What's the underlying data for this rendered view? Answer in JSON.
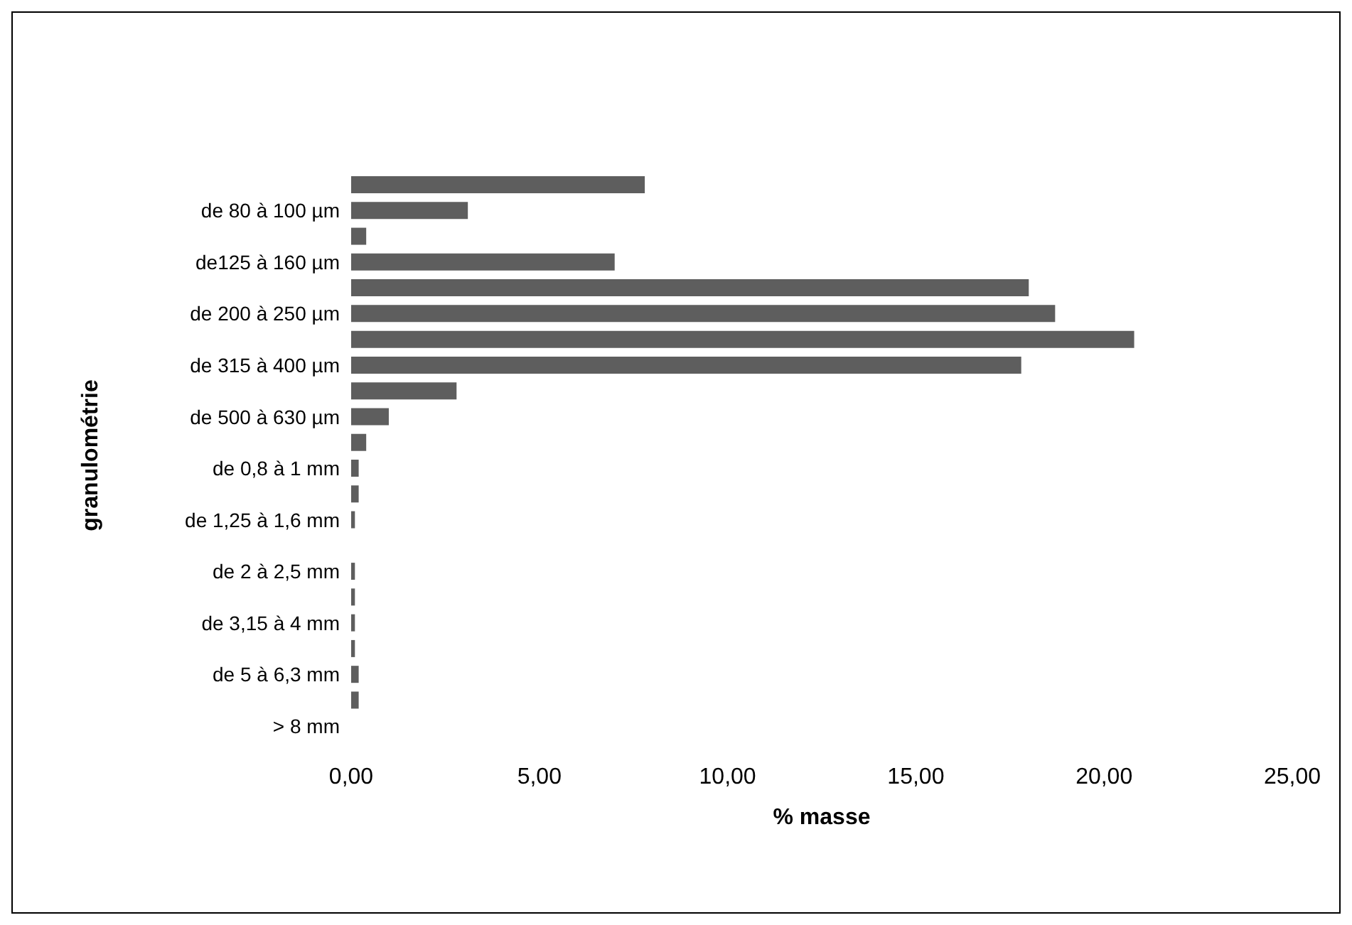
{
  "chart_data": {
    "type": "bar",
    "orientation": "horizontal",
    "xlabel": "% masse",
    "ylabel": "granulométrie",
    "categories": [
      null,
      "de 80 à 100 µm",
      null,
      "de125 à 160 µm",
      null,
      "de 200 à 250 µm",
      null,
      "de 315 à 400 µm",
      null,
      "de 500 à 630 µm",
      null,
      "de 0,8 à 1 mm",
      null,
      "de 1,25 à 1,6 mm",
      null,
      "de 2 à 2,5 mm",
      null,
      "de 3,15 à 4 mm",
      null,
      "de 5 à 6,3 mm",
      null,
      "> 8 mm"
    ],
    "values": [
      7.8,
      3.1,
      0.4,
      7.0,
      18.0,
      18.7,
      20.8,
      17.8,
      2.8,
      1.0,
      0.4,
      0.2,
      0.2,
      0.1,
      0,
      0.1,
      0.1,
      0.1,
      0.1,
      0.2,
      0.2,
      0
    ],
    "color": "#5e5e5e",
    "xlim": [
      0,
      25
    ],
    "xticks": [
      {
        "value": 0,
        "label": "0,00"
      },
      {
        "value": 5,
        "label": "5,00"
      },
      {
        "value": 10,
        "label": "10,00"
      },
      {
        "value": 15,
        "label": "15,00"
      },
      {
        "value": 20,
        "label": "20,00"
      },
      {
        "value": 25,
        "label": "25,00"
      }
    ],
    "grid": false,
    "legend": false
  }
}
